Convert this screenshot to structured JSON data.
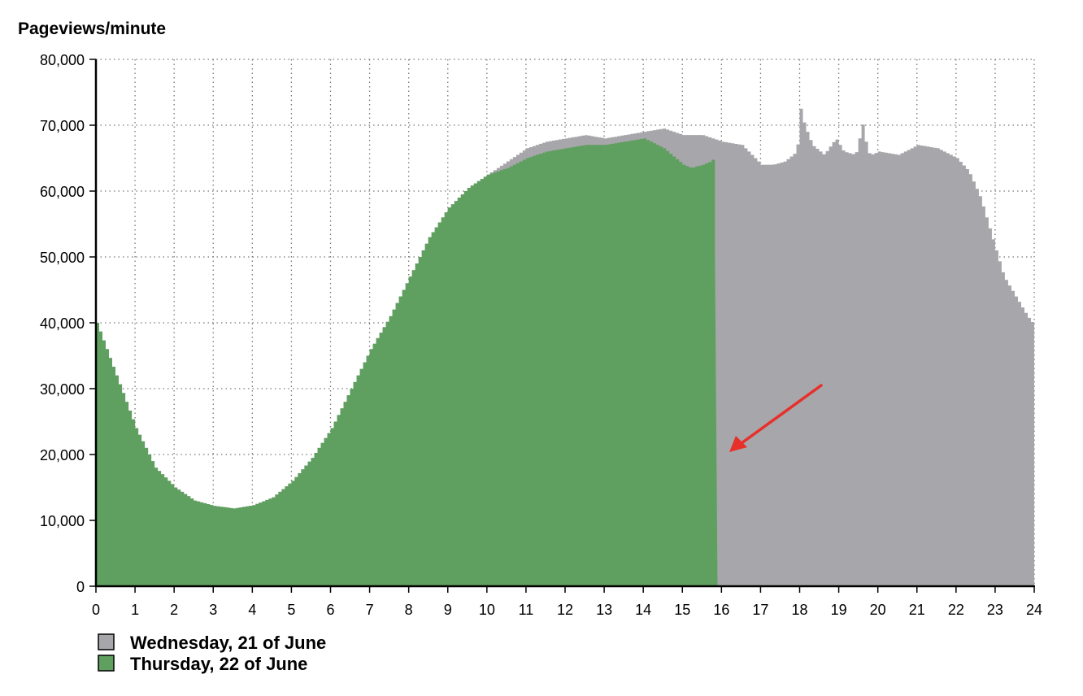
{
  "chart_data": {
    "type": "area",
    "title": "",
    "ylabel": "Pageviews/minute",
    "xlabel": "",
    "xlim": [
      0,
      24
    ],
    "ylim": [
      0,
      80000
    ],
    "x_ticks": [
      "0",
      "1",
      "2",
      "3",
      "4",
      "5",
      "6",
      "7",
      "8",
      "9",
      "10",
      "11",
      "12",
      "13",
      "14",
      "15",
      "16",
      "17",
      "18",
      "19",
      "20",
      "21",
      "22",
      "23",
      "24"
    ],
    "y_ticks": [
      "0",
      "10,000",
      "20,000",
      "30,000",
      "40,000",
      "50,000",
      "60,000",
      "70,000",
      "80,000"
    ],
    "grid": true,
    "legend_position": "bottom-left",
    "series": [
      {
        "name": "Wednesday, 21 of June",
        "color": "#a7a6aa",
        "x": [
          0,
          0.5,
          1,
          1.5,
          2,
          2.5,
          3,
          3.5,
          4,
          4.5,
          5,
          5.5,
          6,
          6.5,
          7,
          7.5,
          8,
          8.5,
          9,
          9.5,
          10,
          10.5,
          11,
          11.5,
          12,
          12.5,
          13,
          13.5,
          14,
          14.5,
          15,
          15.5,
          16,
          16.5,
          17,
          17.3,
          17.6,
          17.9,
          18,
          18.1,
          18.3,
          18.6,
          18.9,
          19.1,
          19.4,
          19.6,
          19.7,
          19.8,
          20,
          20.5,
          21,
          21.5,
          22,
          22.3,
          22.6,
          22.9,
          23.2,
          23.5,
          23.8,
          24
        ],
        "values": [
          40000,
          32000,
          24000,
          18000,
          15000,
          13000,
          12200,
          11800,
          12300,
          13500,
          16000,
          19500,
          24000,
          30000,
          36000,
          41000,
          47000,
          53000,
          57500,
          60500,
          62500,
          64500,
          66500,
          67500,
          68000,
          68500,
          68000,
          68500,
          69000,
          69500,
          68500,
          68500,
          67500,
          67000,
          64000,
          64000,
          64500,
          66000,
          72500,
          70000,
          67000,
          65500,
          68000,
          66000,
          65500,
          70500,
          66000,
          65500,
          66000,
          65500,
          67000,
          66500,
          65000,
          63000,
          59000,
          53000,
          47000,
          44000,
          41000,
          39500
        ]
      },
      {
        "name": "Thursday, 22 of June",
        "color": "#5f9f5f",
        "x": [
          0,
          0.5,
          1,
          1.5,
          2,
          2.5,
          3,
          3.5,
          4,
          4.5,
          5,
          5.5,
          6,
          6.5,
          7,
          7.5,
          8,
          8.5,
          9,
          9.5,
          10,
          10.5,
          11,
          11.5,
          12,
          12.5,
          13,
          13.5,
          14,
          14.5,
          15,
          15.2,
          15.5,
          15.7,
          15.8,
          15.9
        ],
        "values": [
          40000,
          32000,
          24000,
          18000,
          15000,
          13000,
          12200,
          11800,
          12300,
          13500,
          16000,
          19500,
          24000,
          30000,
          36000,
          41000,
          47000,
          53000,
          57500,
          60500,
          62500,
          63500,
          65000,
          66000,
          66500,
          67000,
          67000,
          67500,
          68000,
          66500,
          64000,
          63500,
          64000,
          64500,
          65000,
          19000
        ]
      }
    ]
  }
}
